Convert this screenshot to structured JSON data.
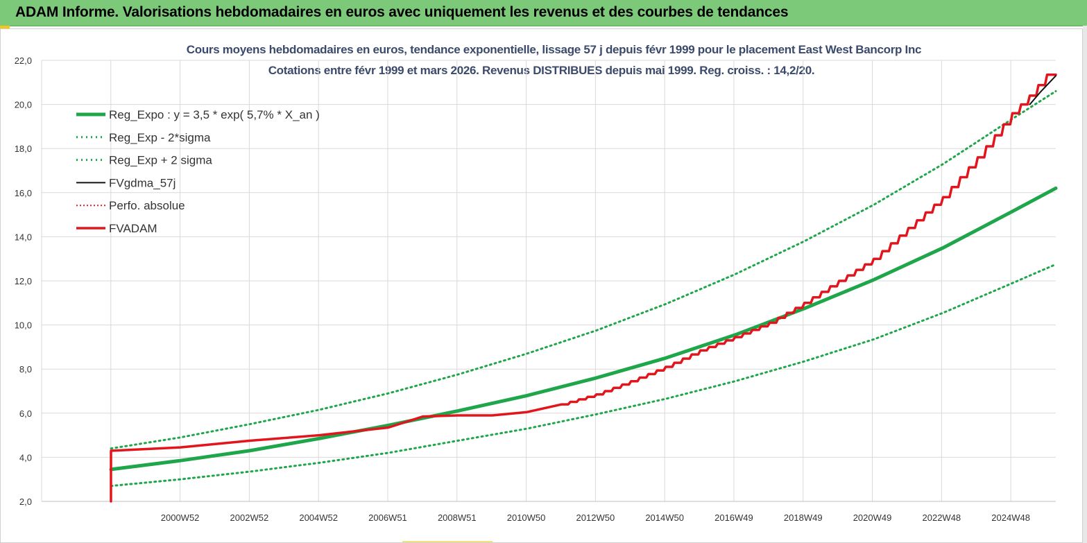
{
  "banner": {
    "title": "ADAM Informe. Valorisations hebdomadaires en euros avec uniquement les revenus et des courbes de tendances"
  },
  "chart_data": {
    "type": "line",
    "title": "Cours moyens hebdomadaires en euros, tendance exponentielle, lissage 57 j depuis févr 1999 pour le placement East West Bancorp Inc",
    "subtitle": "Cotations entre févr 1999 et mars 2026. Revenus DISTRIBUES depuis mai 1999. Reg. croiss. : 14,2/20.",
    "xlabel": "",
    "ylabel": "",
    "ylim": [
      2.0,
      22.0
    ],
    "y_ticks": [
      "2,0",
      "4,0",
      "6,0",
      "8,0",
      "10,0",
      "12,0",
      "14,0",
      "16,0",
      "18,0",
      "20,0",
      "22,0"
    ],
    "x_ticks": [
      "2000W52",
      "2002W52",
      "2004W52",
      "2006W51",
      "2008W51",
      "2010W50",
      "2012W50",
      "2014W50",
      "2016W49",
      "2018W49",
      "2020W49",
      "2022W48",
      "2024W48"
    ],
    "x_range": [
      1997.0,
      2026.25
    ],
    "grid": true,
    "legend_position": "top-left",
    "series": [
      {
        "name": "Reg_Expo : y = 3,5 * exp( 5,7% *  X_an )",
        "color": "#1fa64a",
        "style": "solid-thick",
        "x": [
          1999.0,
          2001.0,
          2003.0,
          2005.0,
          2007.0,
          2009.0,
          2011.0,
          2013.0,
          2015.0,
          2017.0,
          2019.0,
          2021.0,
          2023.0,
          2025.0,
          2026.25
        ],
        "y": [
          3.45,
          3.85,
          4.3,
          4.85,
          5.45,
          6.1,
          6.8,
          7.6,
          8.5,
          9.55,
          10.75,
          12.05,
          13.5,
          15.15,
          16.2
        ]
      },
      {
        "name": "Reg_Exp - 2*sigma",
        "color": "#1fa64a",
        "style": "dotted",
        "x": [
          1999.0,
          2001.0,
          2003.0,
          2005.0,
          2007.0,
          2009.0,
          2011.0,
          2013.0,
          2015.0,
          2017.0,
          2019.0,
          2021.0,
          2023.0,
          2025.0,
          2026.25
        ],
        "y": [
          2.7,
          3.0,
          3.35,
          3.75,
          4.2,
          4.75,
          5.3,
          5.95,
          6.65,
          7.45,
          8.35,
          9.35,
          10.55,
          11.9,
          12.75
        ]
      },
      {
        "name": "Reg_Exp + 2 sigma",
        "color": "#1fa64a",
        "style": "dotted",
        "x": [
          1999.0,
          2001.0,
          2003.0,
          2005.0,
          2007.0,
          2009.0,
          2011.0,
          2013.0,
          2015.0,
          2017.0,
          2019.0,
          2021.0,
          2023.0,
          2025.0,
          2026.25
        ],
        "y": [
          4.4,
          4.9,
          5.5,
          6.15,
          6.9,
          7.75,
          8.7,
          9.75,
          10.95,
          12.3,
          13.8,
          15.45,
          17.3,
          19.35,
          20.6
        ]
      },
      {
        "name": "FVgdma_57j",
        "color": "#111111",
        "style": "solid-thin",
        "x": [
          2025.5,
          2025.8,
          2026.1,
          2026.25
        ],
        "y": [
          20.0,
          20.55,
          21.05,
          21.3
        ]
      },
      {
        "name": "Perfo. absolue",
        "color": "#d8202a",
        "style": "dotted-thin",
        "x": [],
        "y": []
      },
      {
        "name": "FVADAM",
        "color": "#e3151c",
        "style": "solid-medium",
        "x": [
          1999.0,
          1999.0,
          1999.05,
          2001.0,
          2003.0,
          2005.0,
          2007.0,
          2008.0,
          2009.0,
          2010.0,
          2011.0,
          2012.0,
          2013.0,
          2014.0,
          2015.0,
          2016.0,
          2017.0,
          2018.0,
          2019.0,
          2020.0,
          2021.0,
          2022.0,
          2023.0,
          2024.0,
          2025.0,
          2025.5,
          2026.0,
          2026.25
        ],
        "y": [
          2.0,
          4.3,
          4.3,
          4.45,
          4.75,
          5.0,
          5.35,
          5.85,
          5.9,
          5.9,
          6.05,
          6.4,
          6.85,
          7.45,
          8.1,
          8.85,
          9.45,
          10.1,
          11.0,
          12.0,
          13.0,
          14.4,
          15.8,
          17.6,
          19.6,
          20.4,
          21.35,
          21.35
        ]
      }
    ]
  }
}
